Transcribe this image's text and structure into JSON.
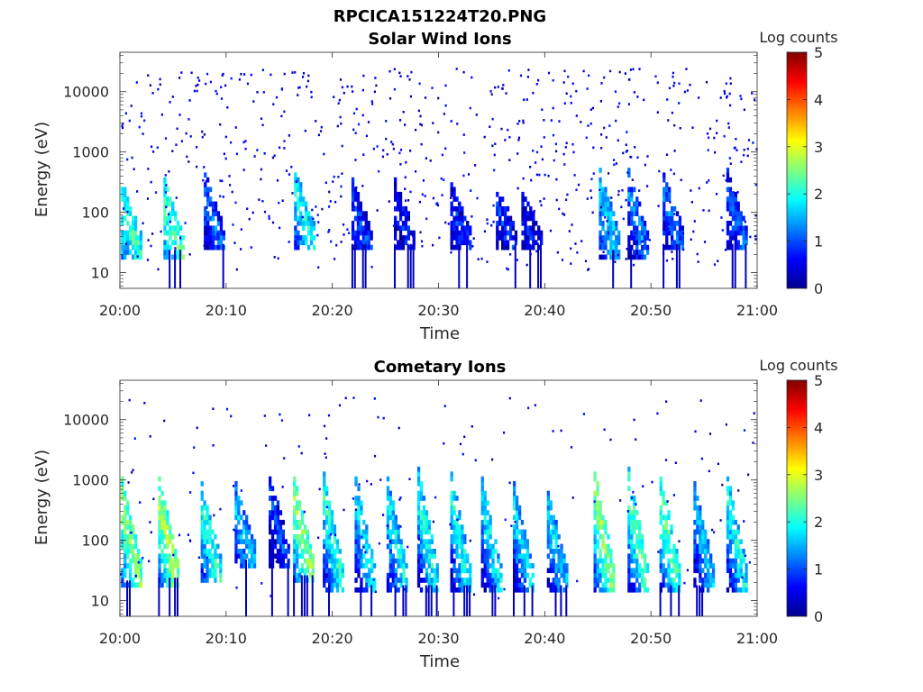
{
  "figure_title": "RPCICA151224T20.PNG",
  "chart_data": [
    {
      "type": "heatmap",
      "title": "Solar Wind Ions",
      "xlabel": "Time",
      "ylabel": "Energy (eV)",
      "x_ticks": [
        "20:00",
        "20:10",
        "20:20",
        "20:30",
        "20:40",
        "20:50",
        "21:00"
      ],
      "y_ticks": [
        "10",
        "100",
        "1000",
        "10000"
      ],
      "y_scale": "log",
      "ylim": [
        5.5,
        45000
      ],
      "xlim": [
        "20:00",
        "21:00"
      ],
      "colorbar": {
        "label": "Log counts",
        "ticks": [
          "0",
          "1",
          "2",
          "3",
          "4",
          "5"
        ],
        "range": [
          0,
          5
        ],
        "colormap": "jet"
      },
      "bursts": [
        {
          "t": 0.3,
          "e_hi": 200,
          "e_lo": 20,
          "v": 2.2
        },
        {
          "t": 4.3,
          "e_hi": 200,
          "e_lo": 20,
          "v": 2.3
        },
        {
          "t": 8.1,
          "e_hi": 280,
          "e_lo": 25,
          "v": 1.2
        },
        {
          "t": 16.6,
          "e_hi": 320,
          "e_lo": 30,
          "v": 1.9
        },
        {
          "t": 22.0,
          "e_hi": 200,
          "e_lo": 25,
          "v": 1.0
        },
        {
          "t": 26.0,
          "e_hi": 200,
          "e_lo": 25,
          "v": 0.8
        },
        {
          "t": 31.3,
          "e_hi": 180,
          "e_lo": 25,
          "v": 0.9
        },
        {
          "t": 35.6,
          "e_hi": 180,
          "e_lo": 25,
          "v": 0.9
        },
        {
          "t": 38.0,
          "e_hi": 120,
          "e_lo": 25,
          "v": 0.7
        },
        {
          "t": 45.3,
          "e_hi": 320,
          "e_lo": 20,
          "v": 1.7
        },
        {
          "t": 48.0,
          "e_hi": 320,
          "e_lo": 20,
          "v": 1.3
        },
        {
          "t": 51.3,
          "e_hi": 280,
          "e_lo": 25,
          "v": 1.2
        },
        {
          "t": 57.3,
          "e_hi": 300,
          "e_lo": 25,
          "v": 1.1
        }
      ],
      "scatter_density": 0.5
    },
    {
      "type": "heatmap",
      "title": "Cometary Ions",
      "xlabel": "Time",
      "ylabel": "Energy (eV)",
      "x_ticks": [
        "20:00",
        "20:10",
        "20:20",
        "20:30",
        "20:40",
        "20:50",
        "21:00"
      ],
      "y_ticks": [
        "10",
        "100",
        "1000",
        "10000"
      ],
      "y_scale": "log",
      "ylim": [
        5.5,
        45000
      ],
      "xlim": [
        "20:00",
        "21:00"
      ],
      "colorbar": {
        "label": "Log counts",
        "ticks": [
          "0",
          "1",
          "2",
          "3",
          "4",
          "5"
        ],
        "range": [
          0,
          5
        ],
        "colormap": "jet"
      },
      "bursts": [
        {
          "t": 0.3,
          "e_hi": 600,
          "e_lo": 18,
          "v": 2.6
        },
        {
          "t": 3.8,
          "e_hi": 600,
          "e_lo": 20,
          "v": 2.7
        },
        {
          "t": 7.8,
          "e_hi": 500,
          "e_lo": 22,
          "v": 2.1
        },
        {
          "t": 11.0,
          "e_hi": 500,
          "e_lo": 40,
          "v": 1.6
        },
        {
          "t": 14.2,
          "e_hi": 700,
          "e_lo": 40,
          "v": 1.0
        },
        {
          "t": 16.5,
          "e_hi": 700,
          "e_lo": 22,
          "v": 2.6
        },
        {
          "t": 19.3,
          "e_hi": 800,
          "e_lo": 15,
          "v": 2.1
        },
        {
          "t": 22.3,
          "e_hi": 700,
          "e_lo": 15,
          "v": 1.9
        },
        {
          "t": 25.3,
          "e_hi": 600,
          "e_lo": 15,
          "v": 1.9
        },
        {
          "t": 28.2,
          "e_hi": 900,
          "e_lo": 15,
          "v": 2.0
        },
        {
          "t": 31.3,
          "e_hi": 800,
          "e_lo": 15,
          "v": 2.0
        },
        {
          "t": 34.2,
          "e_hi": 700,
          "e_lo": 15,
          "v": 1.9
        },
        {
          "t": 37.2,
          "e_hi": 500,
          "e_lo": 15,
          "v": 1.8
        },
        {
          "t": 40.4,
          "e_hi": 400,
          "e_lo": 15,
          "v": 1.7
        },
        {
          "t": 44.8,
          "e_hi": 900,
          "e_lo": 15,
          "v": 2.6
        },
        {
          "t": 48.0,
          "e_hi": 900,
          "e_lo": 15,
          "v": 2.3
        },
        {
          "t": 51.0,
          "e_hi": 700,
          "e_lo": 15,
          "v": 2.3
        },
        {
          "t": 54.2,
          "e_hi": 500,
          "e_lo": 15,
          "v": 1.6
        },
        {
          "t": 57.3,
          "e_hi": 700,
          "e_lo": 15,
          "v": 2.0
        }
      ],
      "scatter_density": 0.12
    }
  ]
}
